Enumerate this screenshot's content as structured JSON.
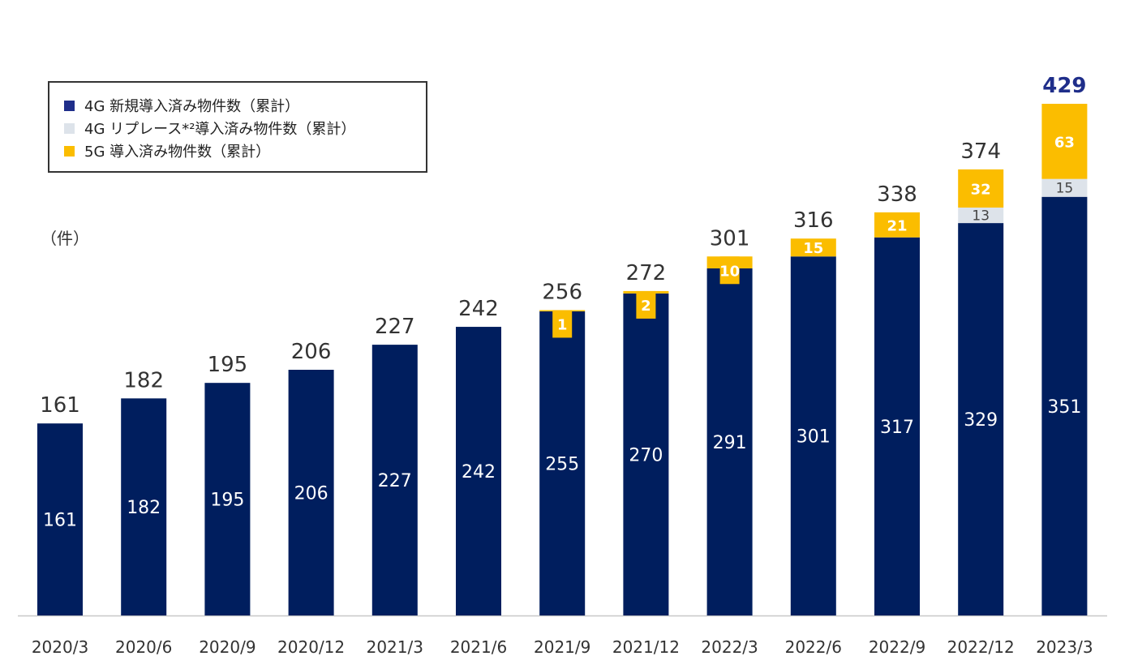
{
  "colors": {
    "g4_new": "#001e5e",
    "g4_replace": "#dde3ea",
    "g5": "#fbbd00",
    "highlight_total": "#1f2e8a"
  },
  "legend": {
    "items": [
      {
        "label": "4G 新規導入済み物件数（累計）",
        "color": "#1f2e8a"
      },
      {
        "label": "4G リプレース*²導入済み物件数（累計）",
        "color": "#dde3ea"
      },
      {
        "label": "5G 導入済み物件数（累計）",
        "color": "#fbbd00"
      }
    ]
  },
  "unit_label": "（件）",
  "chart_data": {
    "type": "bar",
    "stacked": true,
    "categories": [
      "2020/3",
      "2020/6",
      "2020/9",
      "2020/12",
      "2021/3",
      "2021/6",
      "2021/9",
      "2021/12",
      "2022/3",
      "2022/6",
      "2022/9",
      "2022/12",
      "2023/3"
    ],
    "series": [
      {
        "name": "4G 新規導入済み物件数（累計）",
        "values": [
          161,
          182,
          195,
          206,
          227,
          242,
          255,
          270,
          291,
          301,
          317,
          329,
          351
        ]
      },
      {
        "name": "4G リプレース*²導入済み物件数（累計）",
        "values": [
          0,
          0,
          0,
          0,
          0,
          0,
          0,
          0,
          0,
          0,
          0,
          13,
          15
        ]
      },
      {
        "name": "5G 導入済み物件数（累計）",
        "values": [
          0,
          0,
          0,
          0,
          0,
          0,
          1,
          2,
          10,
          15,
          21,
          32,
          63
        ]
      }
    ],
    "totals": [
      161,
      182,
      195,
      206,
      227,
      242,
      256,
      272,
      301,
      316,
      338,
      374,
      429
    ],
    "ylim": [
      0,
      429
    ],
    "ylabel": "（件）",
    "xlabel": "",
    "title": ""
  }
}
